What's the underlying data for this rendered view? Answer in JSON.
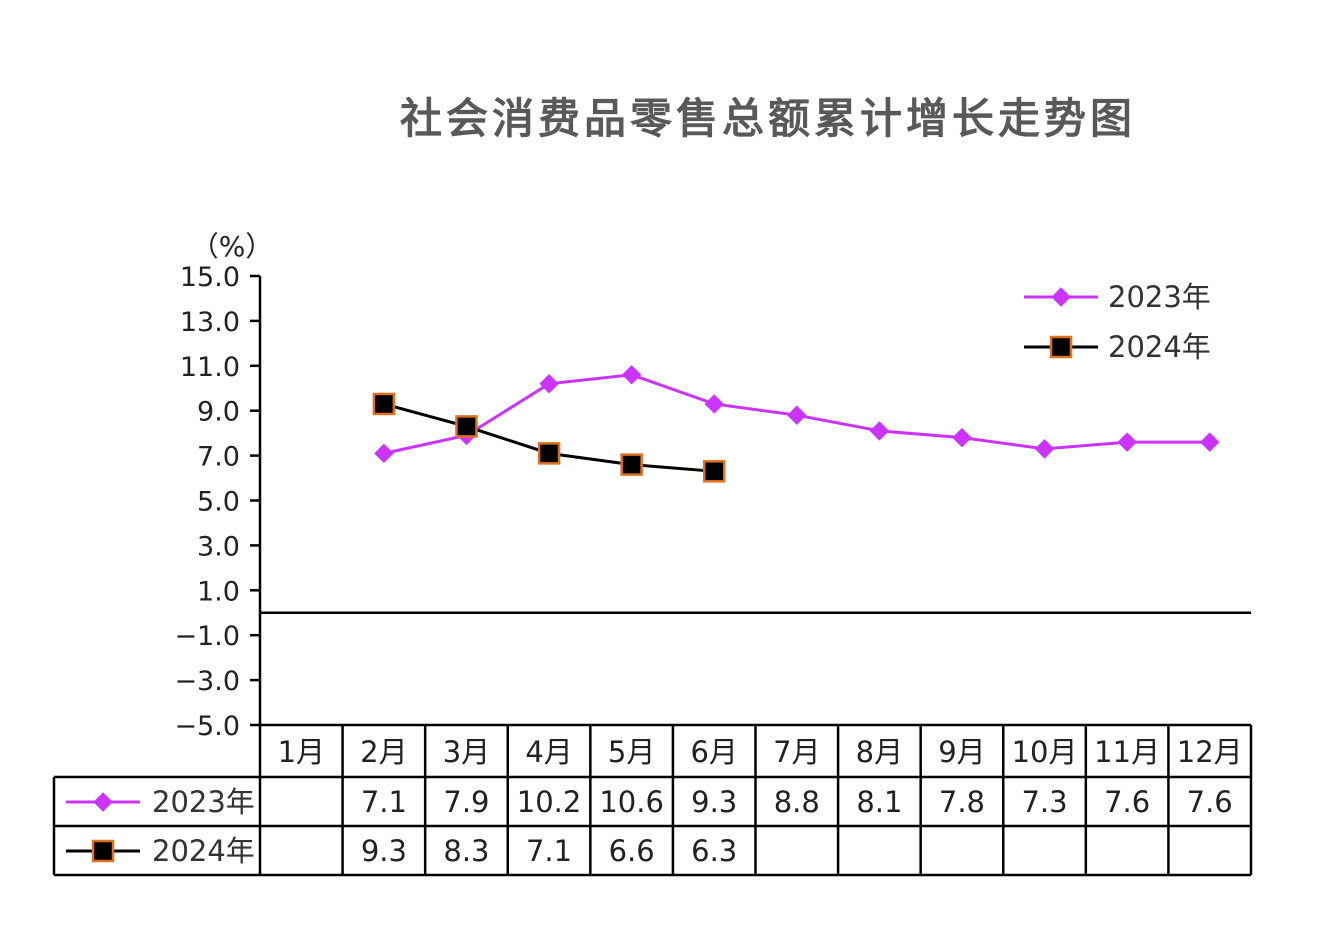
{
  "chart_data": {
    "type": "line",
    "title": "社会消费品零售总额累计增长走势图",
    "unit": "（%）",
    "ylim": [
      -5,
      15
    ],
    "yticks": [
      15,
      13,
      11,
      9,
      7,
      5,
      3,
      1,
      -1,
      -3,
      -5
    ],
    "ytick_labels": [
      "15.0",
      "13.0",
      "11.0",
      "9.0",
      "7.0",
      "5.0",
      "3.0",
      "1.0",
      "−1.0",
      "−3.0",
      "−5.0"
    ],
    "categories": [
      "1月",
      "2月",
      "3月",
      "4月",
      "5月",
      "6月",
      "7月",
      "8月",
      "9月",
      "10月",
      "11月",
      "12月"
    ],
    "series": [
      {
        "name": "2023年",
        "color": "#cc33ff",
        "marker": "diamond",
        "values": [
          null,
          7.1,
          7.9,
          10.2,
          10.6,
          9.3,
          8.8,
          8.1,
          7.8,
          7.3,
          7.6,
          7.6
        ],
        "labels": [
          "",
          "7.1",
          "7.9",
          "10.2",
          "10.6",
          "9.3",
          "8.8",
          "8.1",
          "7.8",
          "7.3",
          "7.6",
          "7.6"
        ]
      },
      {
        "name": "2024年",
        "color": "#000000",
        "marker_edge": "#e07020",
        "marker": "square",
        "values": [
          null,
          9.3,
          8.3,
          7.1,
          6.6,
          6.3,
          null,
          null,
          null,
          null,
          null,
          null
        ],
        "labels": [
          "",
          "9.3",
          "8.3",
          "7.1",
          "6.6",
          "6.3",
          "",
          "",
          "",
          "",
          "",
          ""
        ]
      }
    ],
    "legend_position": "top-right",
    "grid": false,
    "data_table": true
  }
}
